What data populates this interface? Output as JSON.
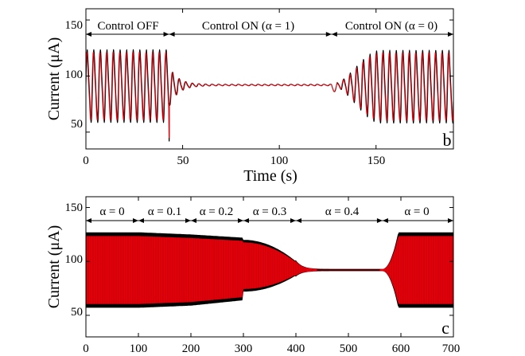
{
  "chart_data": [
    {
      "type": "line",
      "panel_label": "b",
      "xlabel": "Time (s)",
      "ylabel": "Current (μA)",
      "xlim": [
        0,
        190
      ],
      "ylim": [
        35,
        160
      ],
      "xticks": [
        "0",
        "50",
        "100",
        "150"
      ],
      "yticks": [
        "50",
        "100",
        "150"
      ],
      "xtick_values": [
        0,
        50,
        100,
        150
      ],
      "ytick_values": [
        50,
        100,
        150
      ],
      "segments": [
        {
          "label": "Control OFF",
          "x_start": 0,
          "x_end": 43
        },
        {
          "label": "Control ON (α = 1)",
          "x_start": 43,
          "x_end": 127
        },
        {
          "label": "Control ON (α = 0)",
          "x_start": 127,
          "x_end": 190
        }
      ],
      "series": [
        {
          "color": "#000000",
          "description_points": [
            [
              0,
              55
            ],
            [
              0,
              125
            ],
            [
              43,
              55
            ],
            [
              43,
              126
            ],
            [
              60,
              92
            ],
            [
              127,
              92
            ],
            [
              150,
              55
            ],
            [
              150,
              127
            ],
            [
              190,
              55
            ],
            [
              190,
              127
            ]
          ]
        },
        {
          "color": "#e8000b",
          "description_points": [
            [
              0,
              58
            ],
            [
              0,
              124
            ],
            [
              43,
              58
            ],
            [
              43,
              124
            ],
            [
              60,
              92
            ],
            [
              127,
              92
            ],
            [
              150,
              58
            ],
            [
              150,
              125
            ],
            [
              190,
              58
            ],
            [
              190,
              125
            ]
          ]
        }
      ],
      "features": {
        "period_s": 3.4,
        "upper_level": 125,
        "lower_level": 56,
        "controlled_level": 92,
        "spike_time": 43,
        "spike_low": 42,
        "spike_high": 128
      }
    },
    {
      "type": "line",
      "panel_label": "c",
      "xlabel": "",
      "ylabel": "Current (μA)",
      "xlim": [
        0,
        700
      ],
      "ylim": [
        30,
        160
      ],
      "xticks": [
        "0",
        "100",
        "200",
        "300",
        "400",
        "500",
        "600",
        "700"
      ],
      "yticks": [
        "50",
        "100",
        "150"
      ],
      "xtick_values": [
        0,
        100,
        200,
        300,
        400,
        500,
        600,
        700
      ],
      "ytick_values": [
        50,
        100,
        150
      ],
      "segments": [
        {
          "label": "α = 0",
          "x_start": 0,
          "x_end": 100
        },
        {
          "label": "α = 0.1",
          "x_start": 100,
          "x_end": 200
        },
        {
          "label": "α = 0.2",
          "x_start": 200,
          "x_end": 300
        },
        {
          "label": "α = 0.3",
          "x_start": 300,
          "x_end": 400
        },
        {
          "label": "α = 0.4",
          "x_start": 400,
          "x_end": 565
        },
        {
          "label": "α = 0",
          "x_start": 565,
          "x_end": 700
        }
      ],
      "series": [
        {
          "color": "#000000",
          "description_points": [
            [
              0,
              56
            ],
            [
              0,
              128
            ],
            [
              100,
              58
            ],
            [
              100,
              126
            ],
            [
              200,
              63
            ],
            [
              200,
              123
            ],
            [
              300,
              72
            ],
            [
              300,
              115
            ],
            [
              400,
              89
            ],
            [
              400,
              96
            ],
            [
              450,
              92
            ],
            [
              565,
              92
            ],
            [
              600,
              56
            ],
            [
              600,
              128
            ],
            [
              700,
              56
            ],
            [
              700,
              128
            ]
          ]
        },
        {
          "color": "#e8000b",
          "description_points": [
            [
              0,
              60
            ],
            [
              0,
              124
            ],
            [
              700,
              60
            ],
            [
              700,
              124
            ]
          ]
        }
      ],
      "features": {
        "upper_level": 127,
        "lower_level": 57,
        "controlled_level": 92
      }
    }
  ]
}
